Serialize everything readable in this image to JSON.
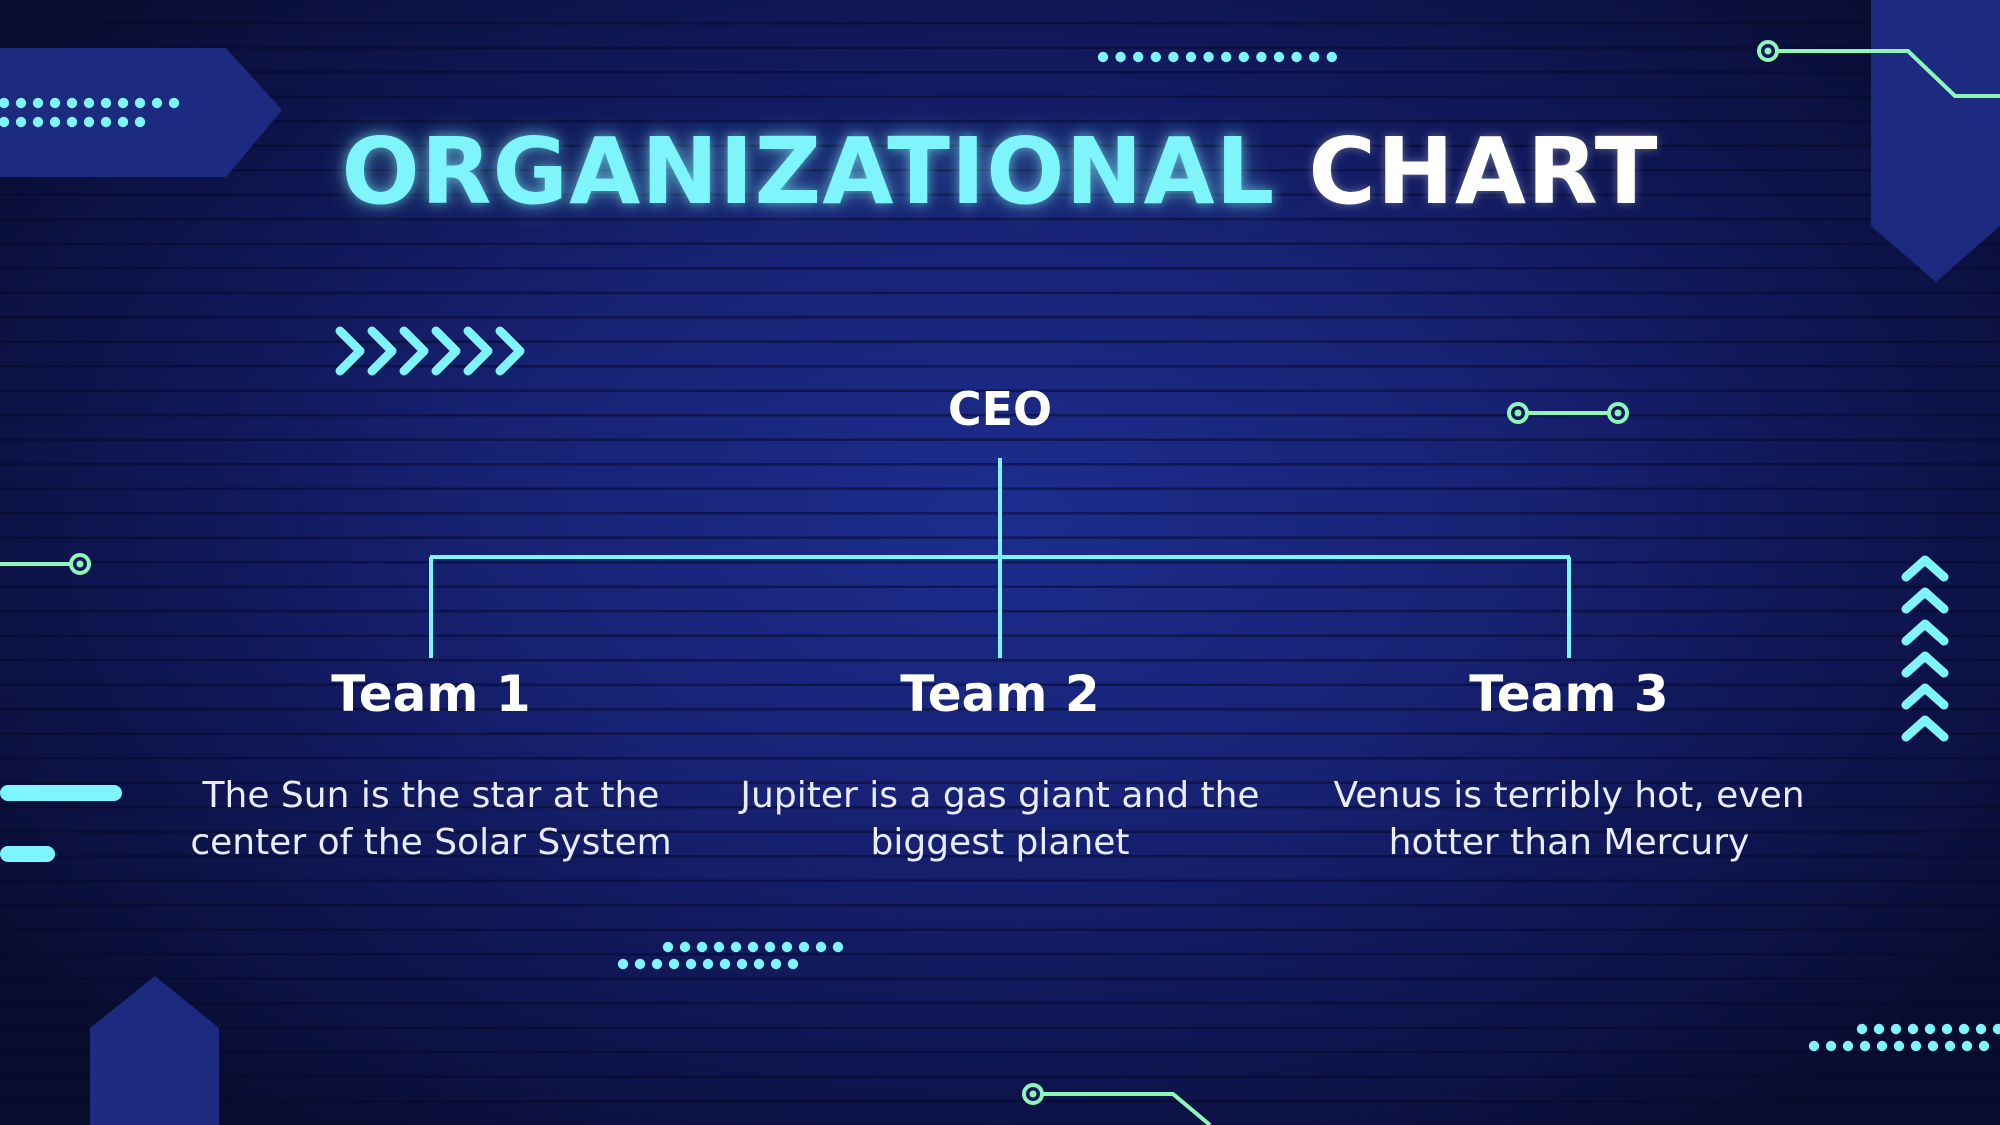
{
  "slide": {
    "title_accent": "ORGANIZATIONAL",
    "title_main": "CHART"
  },
  "org_chart": {
    "root": {
      "label": "CEO"
    },
    "teams": [
      {
        "label": "Team 1",
        "description": "The Sun is the star at the center of the Solar System"
      },
      {
        "label": "Team 2",
        "description": "Jupiter is a gas giant and the biggest planet"
      },
      {
        "label": "Team 3",
        "description": "Venus is terribly hot, even hotter than Mercury"
      }
    ]
  },
  "colors": {
    "accent_cyan": "#7ef5fb",
    "accent_green": "#8ef7b8",
    "shape_navy": "#1c2a80",
    "background": "#162170"
  }
}
